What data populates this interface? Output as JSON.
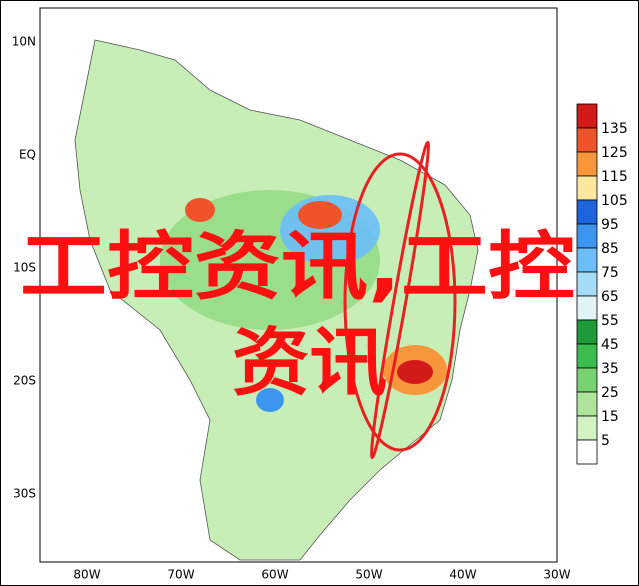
{
  "map": {
    "lat_labels": [
      "10N",
      "EQ",
      "10S",
      "20S",
      "30S"
    ],
    "lon_labels": [
      "80W",
      "70W",
      "60W",
      "50W",
      "40W",
      "30W"
    ],
    "colorbar": {
      "ticks": [
        135,
        125,
        115,
        105,
        95,
        85,
        75,
        65,
        55,
        45,
        35,
        25,
        15,
        5
      ],
      "colors": [
        "#d21a1a",
        "#f0522a",
        "#f8963c",
        "#fde6a0",
        "#1e64dc",
        "#3c96f0",
        "#6cbef8",
        "#a6dcf8",
        "#e0f4f8",
        "#1e9a3a",
        "#3cbc4e",
        "#78d272",
        "#aee49c",
        "#d2f2c4",
        "#ffffff"
      ]
    },
    "watermark": {
      "line1": "工控资讯,工控",
      "line2": "资讯"
    }
  }
}
